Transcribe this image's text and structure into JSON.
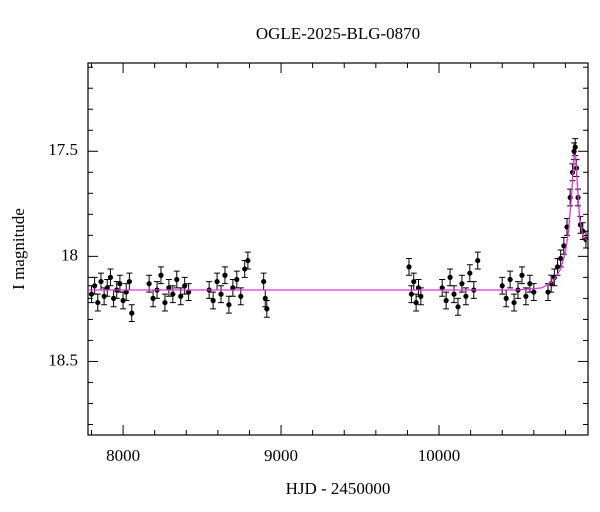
{
  "chart_data": {
    "type": "scatter",
    "title": "OGLE-2025-BLG-0870",
    "x_label": "HJD - 2450000",
    "y_label": "I magnitude",
    "xlim": [
      7778,
      10943
    ],
    "ylim": [
      18.85,
      17.08
    ],
    "xticks": [
      8000,
      9000,
      10000
    ],
    "yticks": [
      17.5,
      18,
      18.5
    ],
    "xminorticks": [
      7800,
      8200,
      8400,
      8600,
      8800,
      9200,
      9400,
      9600,
      9800,
      10200,
      10400,
      10600,
      10800
    ],
    "yminorticks": [
      17.1,
      17.2,
      17.3,
      17.4,
      17.6,
      17.7,
      17.8,
      17.9,
      18.1,
      18.2,
      18.3,
      18.4,
      18.6,
      18.7,
      18.8
    ],
    "color": "#000000",
    "y_error": 0.04,
    "x": [
      7800,
      7820,
      7840,
      7860,
      7880,
      7900,
      7920,
      7940,
      7960,
      7980,
      8000,
      8020,
      8040,
      8055,
      8165,
      8190,
      8215,
      8240,
      8265,
      8290,
      8315,
      8340,
      8365,
      8390,
      8415,
      8545,
      8570,
      8595,
      8620,
      8645,
      8670,
      8695,
      8720,
      8745,
      8770,
      8790,
      8890,
      8900,
      8910,
      9810,
      9825,
      9840,
      9855,
      9870,
      9885,
      10020,
      10045,
      10070,
      10095,
      10120,
      10145,
      10170,
      10195,
      10220,
      10245,
      10400,
      10425,
      10450,
      10475,
      10500,
      10525,
      10550,
      10575,
      10600,
      10690,
      10710,
      10730,
      10750,
      10770,
      10790,
      10810,
      10830,
      10845,
      10855,
      10862,
      10870,
      10880,
      10895,
      10910,
      10930
    ],
    "y": [
      18.18,
      18.14,
      18.22,
      18.12,
      18.19,
      18.15,
      18.1,
      18.2,
      18.16,
      18.13,
      18.21,
      18.17,
      18.12,
      18.27,
      18.13,
      18.2,
      18.16,
      18.09,
      18.22,
      18.15,
      18.18,
      18.11,
      18.19,
      18.14,
      18.17,
      18.16,
      18.21,
      18.12,
      18.18,
      18.09,
      18.23,
      18.15,
      18.11,
      18.19,
      18.06,
      18.02,
      18.12,
      18.2,
      18.25,
      18.05,
      18.18,
      18.12,
      18.22,
      18.15,
      18.19,
      18.15,
      18.21,
      18.1,
      18.18,
      18.24,
      18.13,
      18.19,
      18.08,
      18.16,
      18.02,
      18.14,
      18.2,
      18.11,
      18.22,
      18.16,
      18.09,
      18.19,
      18.13,
      18.17,
      18.17,
      18.13,
      18.1,
      18.05,
      18.01,
      17.95,
      17.86,
      17.72,
      17.6,
      17.5,
      17.48,
      17.58,
      17.72,
      17.85,
      17.88,
      17.92
    ],
    "model": {
      "color": "#e030e0",
      "x": [
        7778,
        10500,
        10650,
        10720,
        10770,
        10800,
        10820,
        10840,
        10855,
        10865,
        10875,
        10890,
        10910,
        10943
      ],
      "y": [
        18.16,
        18.16,
        18.15,
        18.12,
        18.06,
        17.98,
        17.88,
        17.7,
        17.52,
        17.52,
        17.65,
        17.82,
        17.9,
        17.93
      ]
    }
  }
}
